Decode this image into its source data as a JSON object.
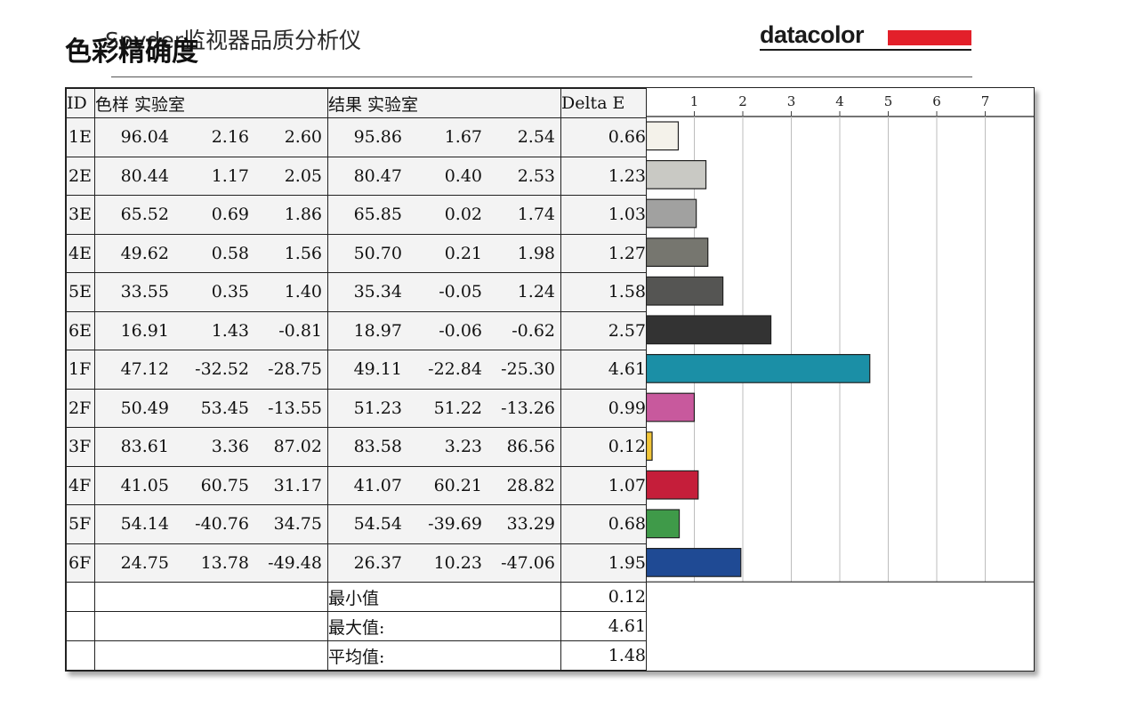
{
  "header": {
    "title_back": "Spyder监视器品质分析仪",
    "title_front": "色彩精确度",
    "logo_text": "datacolor"
  },
  "colors": {
    "logo_red": "#e3202a",
    "grid": "#bdbdbd",
    "frame": "#222222"
  },
  "table": {
    "headers": {
      "id": "ID",
      "sample": "色样 实验室",
      "result": "结果 实验室",
      "delta": "Delta E"
    },
    "rows": [
      {
        "id": "1E",
        "sample": [
          "96.04",
          "2.16",
          "2.60"
        ],
        "result": [
          "95.86",
          "1.67",
          "2.54"
        ],
        "delta": "0.66"
      },
      {
        "id": "2E",
        "sample": [
          "80.44",
          "1.17",
          "2.05"
        ],
        "result": [
          "80.47",
          "0.40",
          "2.53"
        ],
        "delta": "1.23"
      },
      {
        "id": "3E",
        "sample": [
          "65.52",
          "0.69",
          "1.86"
        ],
        "result": [
          "65.85",
          "0.02",
          "1.74"
        ],
        "delta": "1.03"
      },
      {
        "id": "4E",
        "sample": [
          "49.62",
          "0.58",
          "1.56"
        ],
        "result": [
          "50.70",
          "0.21",
          "1.98"
        ],
        "delta": "1.27"
      },
      {
        "id": "5E",
        "sample": [
          "33.55",
          "0.35",
          "1.40"
        ],
        "result": [
          "35.34",
          "-0.05",
          "1.24"
        ],
        "delta": "1.58"
      },
      {
        "id": "6E",
        "sample": [
          "16.91",
          "1.43",
          "-0.81"
        ],
        "result": [
          "18.97",
          "-0.06",
          "-0.62"
        ],
        "delta": "2.57"
      },
      {
        "id": "1F",
        "sample": [
          "47.12",
          "-32.52",
          "-28.75"
        ],
        "result": [
          "49.11",
          "-22.84",
          "-25.30"
        ],
        "delta": "4.61"
      },
      {
        "id": "2F",
        "sample": [
          "50.49",
          "53.45",
          "-13.55"
        ],
        "result": [
          "51.23",
          "51.22",
          "-13.26"
        ],
        "delta": "0.99"
      },
      {
        "id": "3F",
        "sample": [
          "83.61",
          "3.36",
          "87.02"
        ],
        "result": [
          "83.58",
          "3.23",
          "86.56"
        ],
        "delta": "0.12"
      },
      {
        "id": "4F",
        "sample": [
          "41.05",
          "60.75",
          "31.17"
        ],
        "result": [
          "41.07",
          "60.21",
          "28.82"
        ],
        "delta": "1.07"
      },
      {
        "id": "5F",
        "sample": [
          "54.14",
          "-40.76",
          "34.75"
        ],
        "result": [
          "54.54",
          "-39.69",
          "33.29"
        ],
        "delta": "0.68"
      },
      {
        "id": "6F",
        "sample": [
          "24.75",
          "13.78",
          "-49.48"
        ],
        "result": [
          "26.37",
          "10.23",
          "-47.06"
        ],
        "delta": "1.95"
      }
    ],
    "stats": [
      {
        "label": "最小值",
        "value": "0.12"
      },
      {
        "label": "最大值:",
        "value": "4.61"
      },
      {
        "label": "平均值:",
        "value": "1.48"
      }
    ]
  },
  "chart_data": {
    "type": "bar",
    "orientation": "horizontal",
    "categories": [
      "1E",
      "2E",
      "3E",
      "4E",
      "5E",
      "6E",
      "1F",
      "2F",
      "3F",
      "4F",
      "5F",
      "6F"
    ],
    "values": [
      0.66,
      1.23,
      1.03,
      1.27,
      1.58,
      2.57,
      4.61,
      0.99,
      0.12,
      1.07,
      0.68,
      1.95
    ],
    "bar_colors": [
      "#f4f2ea",
      "#c9c9c4",
      "#a1a1a0",
      "#76766f",
      "#555553",
      "#333333",
      "#1b8fa6",
      "#c8599d",
      "#f2c537",
      "#c51e3a",
      "#3f9a49",
      "#1f4a94"
    ],
    "xticks": [
      "1",
      "2",
      "3",
      "4",
      "5",
      "6",
      "7"
    ],
    "xlim": [
      0,
      8
    ],
    "grid": true
  }
}
